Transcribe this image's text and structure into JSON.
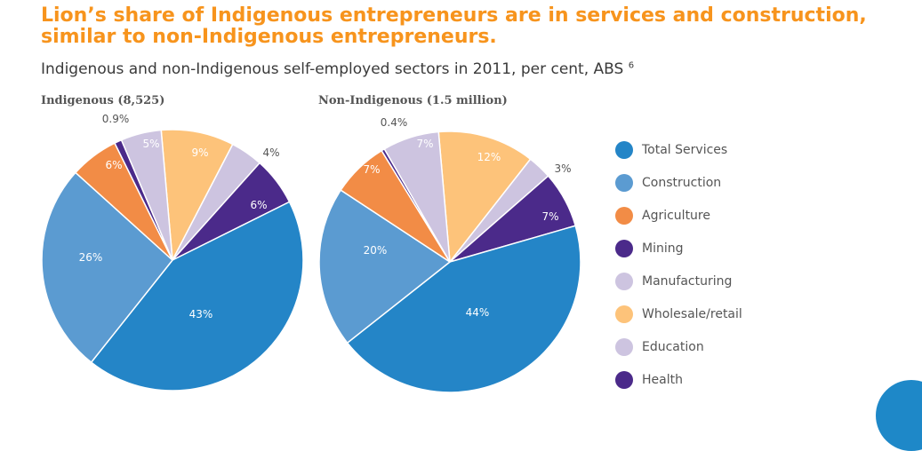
{
  "title_line1": "Lion’s share of Indigenous entrepreneurs are in services and construction,",
  "title_line2": "similar to non-Indigenous entrepreneurs.",
  "subtitle": "Indigenous and non-Indigenous self-employed sectors in 2011, per cent, ABS",
  "subtitle_ref": "6",
  "chart_data": [
    {
      "type": "pie",
      "title": "Indigenous (8,525)",
      "categories": [
        "Total Services",
        "Construction",
        "Agriculture",
        "Mining",
        "Manufacturing",
        "Wholesale/retail",
        "Education",
        "Health"
      ],
      "values": [
        43,
        26,
        6,
        0.9,
        5,
        9,
        4,
        6
      ],
      "labels": [
        "43%",
        "26%",
        "6%",
        "0.9%",
        "5%",
        "9%",
        "4%",
        "6%"
      ]
    },
    {
      "type": "pie",
      "title": "Non-Indigenous (1.5 million)",
      "categories": [
        "Total Services",
        "Construction",
        "Agriculture",
        "Mining",
        "Manufacturing",
        "Wholesale/retail",
        "Education",
        "Health"
      ],
      "values": [
        44,
        20,
        7,
        0.4,
        7,
        12,
        3,
        7
      ],
      "labels": [
        "44%",
        "20%",
        "7%",
        "0.4%",
        "7%",
        "12%",
        "3%",
        "7%"
      ]
    }
  ],
  "legend": [
    {
      "label": "Total Services",
      "color": "#2485c7"
    },
    {
      "label": "Construction",
      "color": "#5b9bd1"
    },
    {
      "label": "Agriculture",
      "color": "#f28c46"
    },
    {
      "label": "Mining",
      "color": "#4b2a8a"
    },
    {
      "label": "Manufacturing",
      "color": "#cdc4e0"
    },
    {
      "label": "Wholesale/retail",
      "color": "#fdc37a"
    },
    {
      "label": "Education",
      "color": "#cdc4e0"
    },
    {
      "label": "Health",
      "color": "#4b2a8a"
    }
  ]
}
